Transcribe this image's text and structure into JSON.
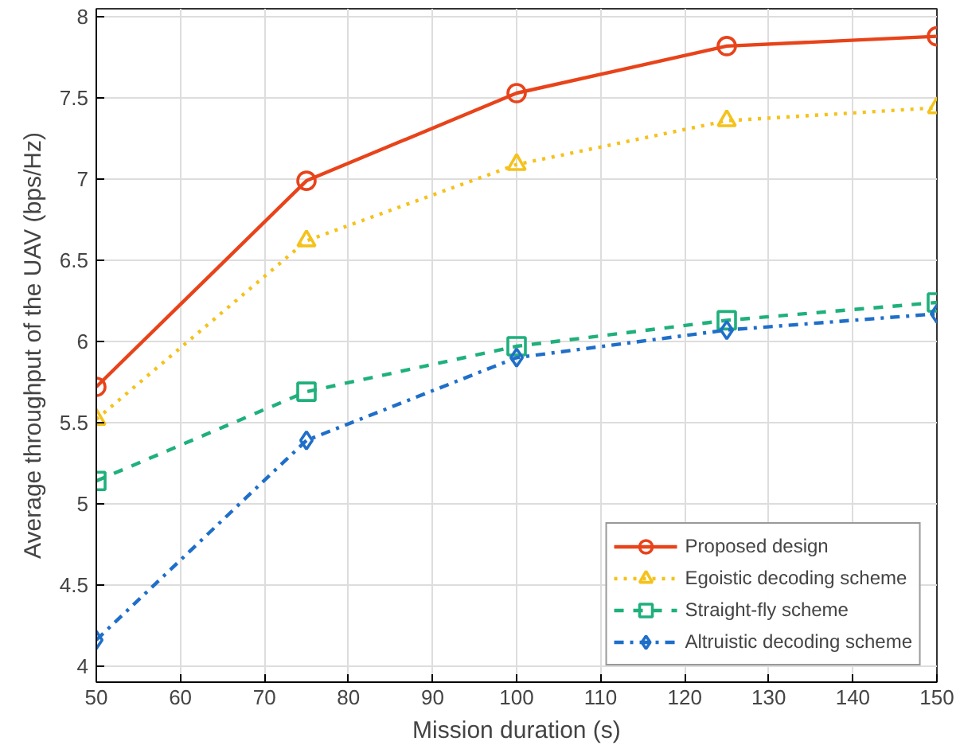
{
  "chart_data": {
    "type": "line",
    "xlabel": "Mission duration (s)",
    "ylabel": "Average throughput of the UAV (bps/Hz)",
    "x": [
      50,
      75,
      100,
      125,
      150
    ],
    "series": [
      {
        "name": "Proposed design",
        "color": "#e8431a",
        "marker": "circle",
        "line_style": "solid",
        "values": [
          5.72,
          6.99,
          7.53,
          7.82,
          7.88
        ]
      },
      {
        "name": "Egoistic decoding scheme",
        "color": "#f5c21b",
        "marker": "triangle",
        "line_style": "dotted",
        "values": [
          5.52,
          6.62,
          7.09,
          7.36,
          7.44
        ]
      },
      {
        "name": "Straight-fly scheme",
        "color": "#1fb07c",
        "marker": "square",
        "line_style": "dashed",
        "values": [
          5.14,
          5.69,
          5.97,
          6.13,
          6.24
        ]
      },
      {
        "name": "Altruistic decoding scheme",
        "color": "#1f6fc9",
        "marker": "diamond",
        "line_style": "dashdot",
        "values": [
          4.16,
          5.39,
          5.9,
          6.07,
          6.17
        ]
      }
    ],
    "xlim": [
      50,
      150
    ],
    "ylim": [
      3.9,
      8.05
    ],
    "xticks": [
      50,
      60,
      70,
      80,
      90,
      100,
      110,
      120,
      130,
      140,
      150
    ],
    "yticks": [
      4,
      4.5,
      5,
      5.5,
      6,
      6.5,
      7,
      7.5,
      8
    ],
    "grid": true,
    "legend": "bottom right"
  }
}
